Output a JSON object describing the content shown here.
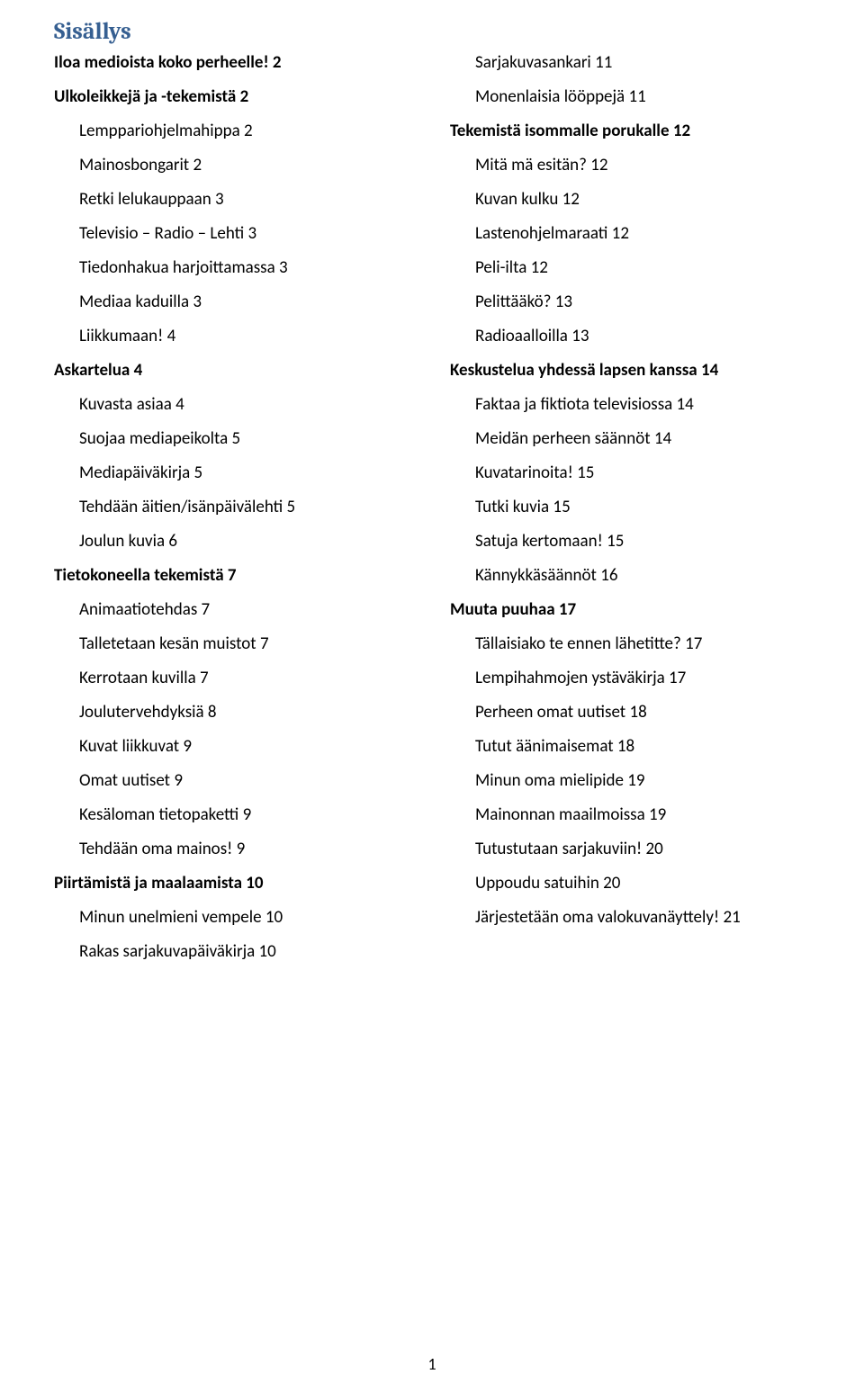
{
  "title": "Sisällys",
  "pageNumber": "1",
  "colors": {
    "title": "#365f91",
    "text": "#000000",
    "background": "#ffffff"
  },
  "typography": {
    "title_font": "Cambria",
    "body_font": "Calibri",
    "title_size_pt": 20,
    "body_size_pt": 14
  },
  "leftColumn": [
    {
      "text": "Iloa medioista koko perheelle! 2",
      "level": "section"
    },
    {
      "text": "Ulkoleikkejä ja -tekemistä 2",
      "level": "section"
    },
    {
      "text": "Lemppariohjelmahippa 2",
      "level": "sub"
    },
    {
      "text": "Mainosbongarit 2",
      "level": "sub"
    },
    {
      "text": "Retki lelukauppaan 3",
      "level": "sub"
    },
    {
      "text": "Televisio – Radio – Lehti 3",
      "level": "sub"
    },
    {
      "text": "Tiedonhakua harjoittamassa 3",
      "level": "sub"
    },
    {
      "text": "Mediaa kaduilla 3",
      "level": "sub"
    },
    {
      "text": "Liikkumaan! 4",
      "level": "sub"
    },
    {
      "text": "Askartelua 4",
      "level": "section"
    },
    {
      "text": "Kuvasta asiaa 4",
      "level": "sub"
    },
    {
      "text": "Suojaa mediapeikolta 5",
      "level": "sub"
    },
    {
      "text": "Mediapäiväkirja 5",
      "level": "sub"
    },
    {
      "text": "Tehdään äitien/isänpäivälehti 5",
      "level": "sub"
    },
    {
      "text": "Joulun kuvia 6",
      "level": "sub"
    },
    {
      "text": "Tietokoneella tekemistä 7",
      "level": "section"
    },
    {
      "text": "Animaatiotehdas 7",
      "level": "sub"
    },
    {
      "text": "Talletetaan kesän muistot 7",
      "level": "sub"
    },
    {
      "text": "Kerrotaan kuvilla 7",
      "level": "sub"
    },
    {
      "text": "Joulutervehdyksiä 8",
      "level": "sub"
    },
    {
      "text": "Kuvat liikkuvat 9",
      "level": "sub"
    },
    {
      "text": "Omat uutiset 9",
      "level": "sub"
    },
    {
      "text": "Kesäloman tietopaketti 9",
      "level": "sub"
    },
    {
      "text": "Tehdään oma mainos! 9",
      "level": "sub"
    },
    {
      "text": "Piirtämistä ja maalaamista 10",
      "level": "section"
    },
    {
      "text": "Minun unelmieni vempele 10",
      "level": "sub"
    },
    {
      "text": "Rakas sarjakuvapäiväkirja 10",
      "level": "sub"
    }
  ],
  "rightColumn": [
    {
      "text": "Sarjakuvasankari 11",
      "level": "sub"
    },
    {
      "text": "Monenlaisia lööppejä 11",
      "level": "sub"
    },
    {
      "text": "Tekemistä isommalle porukalle 12",
      "level": "section"
    },
    {
      "text": "Mitä mä esitän? 12",
      "level": "sub"
    },
    {
      "text": "Kuvan kulku 12",
      "level": "sub"
    },
    {
      "text": "Lastenohjelmaraati 12",
      "level": "sub"
    },
    {
      "text": "Peli-ilta 12",
      "level": "sub"
    },
    {
      "text": "Pelittääkö? 13",
      "level": "sub"
    },
    {
      "text": "Radioaalloilla 13",
      "level": "sub"
    },
    {
      "text": "Keskustelua yhdessä lapsen kanssa 14",
      "level": "section"
    },
    {
      "text": "Faktaa ja fiktiota televisiossa 14",
      "level": "sub"
    },
    {
      "text": "Meidän perheen säännöt 14",
      "level": "sub"
    },
    {
      "text": "Kuvatarinoita! 15",
      "level": "sub"
    },
    {
      "text": "Tutki kuvia 15",
      "level": "sub"
    },
    {
      "text": "Satuja kertomaan! 15",
      "level": "sub"
    },
    {
      "text": "Kännykkäsäännöt 16",
      "level": "sub"
    },
    {
      "text": "Muuta puuhaa 17",
      "level": "section"
    },
    {
      "text": "Tällaisiako te ennen lähetitte? 17",
      "level": "sub"
    },
    {
      "text": "Lempihahmojen ystäväkirja 17",
      "level": "sub"
    },
    {
      "text": "Perheen omat uutiset 18",
      "level": "sub"
    },
    {
      "text": "Tutut äänimaisemat 18",
      "level": "sub"
    },
    {
      "text": "Minun oma mielipide 19",
      "level": "sub"
    },
    {
      "text": "Mainonnan maailmoissa 19",
      "level": "sub"
    },
    {
      "text": "Tutustutaan sarjakuviin! 20",
      "level": "sub"
    },
    {
      "text": "Uppoudu satuihin 20",
      "level": "sub"
    },
    {
      "text": "Järjestetään oma valokuvanäyttely! 21",
      "level": "sub"
    }
  ]
}
